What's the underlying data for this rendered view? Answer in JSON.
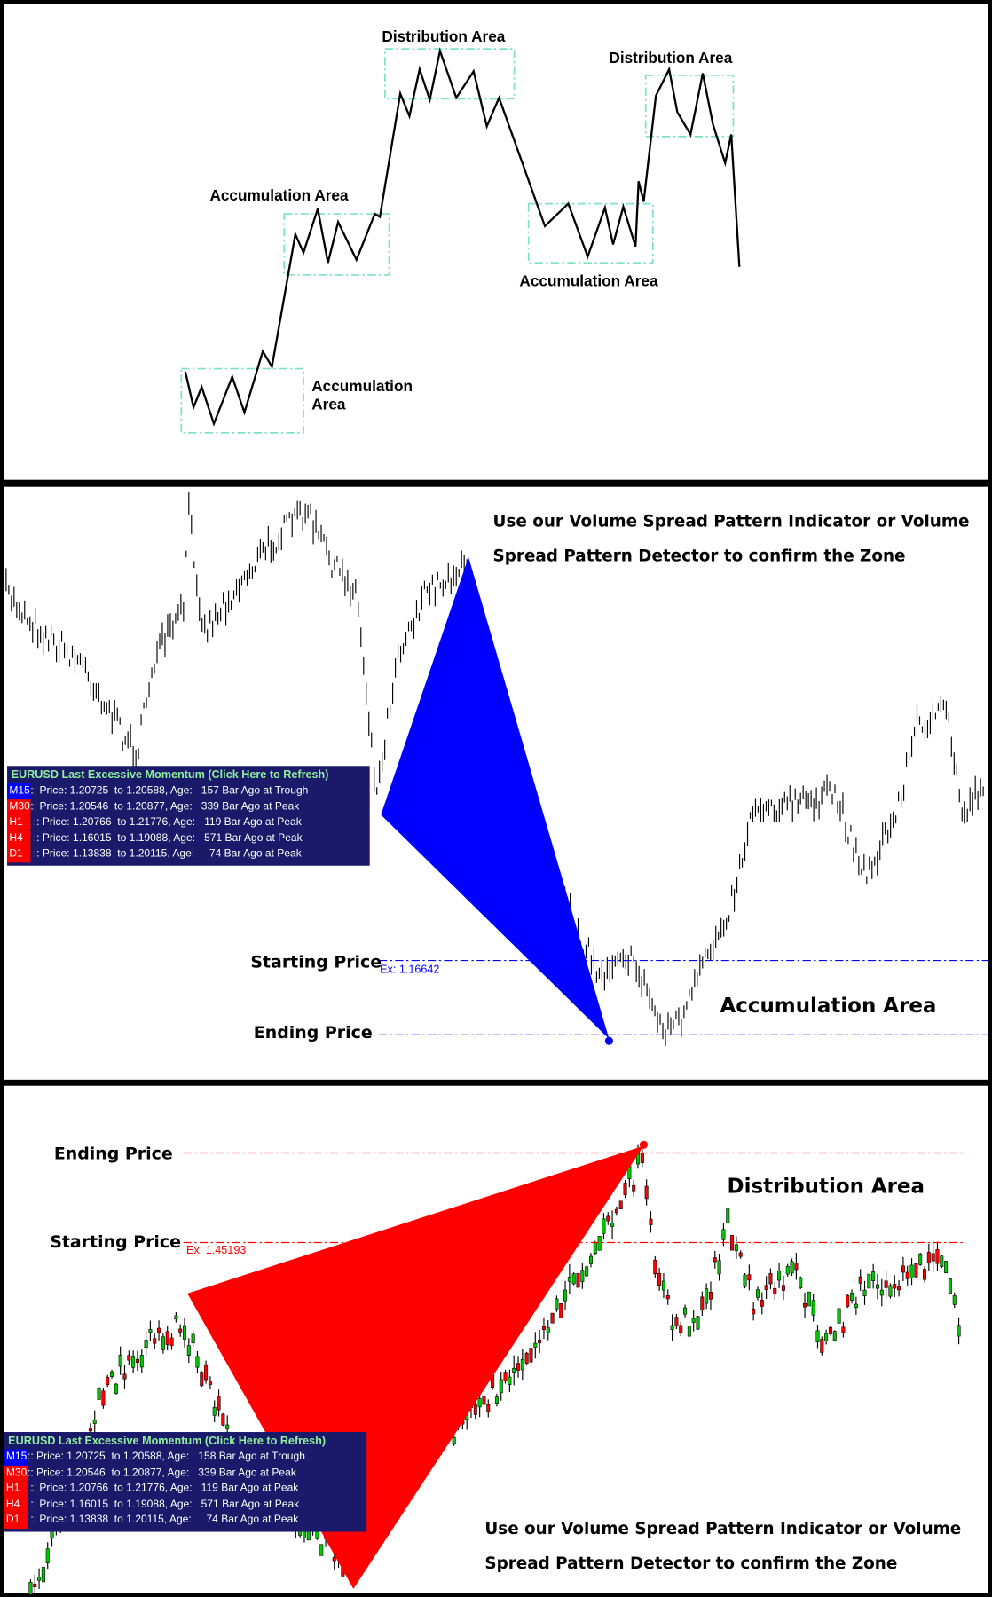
{
  "panel1": {
    "labels": {
      "distribution_1": "Distribution Area",
      "distribution_2": "Distribution Area",
      "accumulation_1": "Accumulation Area",
      "accumulation_2": "Accumulation Area",
      "accumulation_3_line1": "Accumulation",
      "accumulation_3_line2": "Area"
    },
    "zone_color": "#7fe0c8"
  },
  "panel2": {
    "caption_line1": "Use our Volume Spread Pattern Indicator or Volume",
    "caption_line2": "Spread Pattern Detector to confirm the Zone",
    "starting_price_label": "Starting Price",
    "ending_price_label": "Ending Price",
    "ex_label": "Ex: 1.16642",
    "zone_label": "Accumulation Area",
    "accent_color": "#0000ff",
    "info_panel": {
      "title": "EURUSD Last Excessive Momentum (Click Here to Refresh)",
      "rows": [
        {
          "tf": "M15",
          "text": ":: Price: 1.20725  to 1.20588, Age:   157 Bar Ago at Trough",
          "color": "#0000ff"
        },
        {
          "tf": "M30",
          "text": ":: Price: 1.20546  to 1.20877, Age:   339 Bar Ago at Peak",
          "color": "#ff0000"
        },
        {
          "tf": "H1",
          "text": " :: Price: 1.20766  to 1.21776, Age:   119 Bar Ago at Peak",
          "color": "#ff0000"
        },
        {
          "tf": "H4",
          "text": " :: Price: 1.16015  to 1.19088, Age:   571 Bar Ago at Peak",
          "color": "#ff0000"
        },
        {
          "tf": "D1",
          "text": " :: Price: 1.13838  to 1.20115, Age:     74 Bar Ago at Peak",
          "color": "#ff0000"
        }
      ]
    }
  },
  "panel3": {
    "caption_line1": "Use our Volume Spread Pattern Indicator or Volume",
    "caption_line2": "Spread Pattern Detector to confirm the Zone",
    "starting_price_label": "Starting Price",
    "ending_price_label": "Ending Price",
    "ex_label": "Ex: 1.45193",
    "zone_label": "Distribution Area",
    "accent_color": "#ff0000",
    "info_panel": {
      "title": "EURUSD Last Excessive Momentum (Click Here to Refresh)",
      "rows": [
        {
          "tf": "M15",
          "text": ":: Price: 1.20725  to 1.20588, Age:   158 Bar Ago at Trough",
          "color": "#0000ff"
        },
        {
          "tf": "M30",
          "text": ":: Price: 1.20546  to 1.20877, Age:   339 Bar Ago at Peak",
          "color": "#ff0000"
        },
        {
          "tf": "H1",
          "text": " :: Price: 1.20766  to 1.21776, Age:   119 Bar Ago at Peak",
          "color": "#ff0000"
        },
        {
          "tf": "H4",
          "text": " :: Price: 1.16015  to 1.19088, Age:   571 Bar Ago at Peak",
          "color": "#ff0000"
        },
        {
          "tf": "D1",
          "text": " :: Price: 1.13838  to 1.20115, Age:     74 Bar Ago at Peak",
          "color": "#ff0000"
        }
      ]
    }
  }
}
